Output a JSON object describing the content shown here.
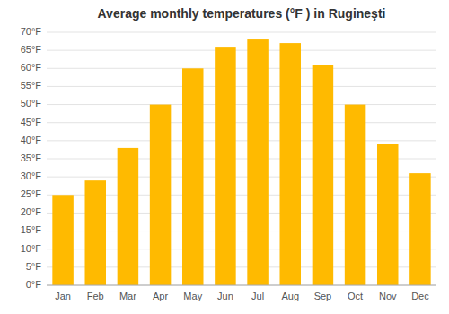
{
  "chart_data": {
    "type": "bar",
    "title": "Average monthly temperatures (°F ) in Rugineşti",
    "categories": [
      "Jan",
      "Feb",
      "Mar",
      "Apr",
      "May",
      "Jun",
      "Jul",
      "Aug",
      "Sep",
      "Oct",
      "Nov",
      "Dec"
    ],
    "values": [
      25,
      29,
      38,
      50,
      60,
      66,
      68,
      67,
      61,
      50,
      39,
      31
    ],
    "color": "#FFBA00",
    "ylim": [
      0,
      70
    ],
    "yticks": [
      {
        "value": 0,
        "label": "0°F"
      },
      {
        "value": 5,
        "label": "5°F"
      },
      {
        "value": 10,
        "label": "10°F"
      },
      {
        "value": 15,
        "label": "15°F"
      },
      {
        "value": 20,
        "label": "20°F"
      },
      {
        "value": 25,
        "label": "25°F"
      },
      {
        "value": 30,
        "label": "30°F"
      },
      {
        "value": 35,
        "label": "35°F"
      },
      {
        "value": 40,
        "label": "40°F"
      },
      {
        "value": 45,
        "label": "45°F"
      },
      {
        "value": 50,
        "label": "50°F"
      },
      {
        "value": 55,
        "label": "55°F"
      },
      {
        "value": 60,
        "label": "60°F"
      },
      {
        "value": 65,
        "label": "65°F"
      },
      {
        "value": 70,
        "label": "70°F"
      }
    ],
    "grid": true
  }
}
